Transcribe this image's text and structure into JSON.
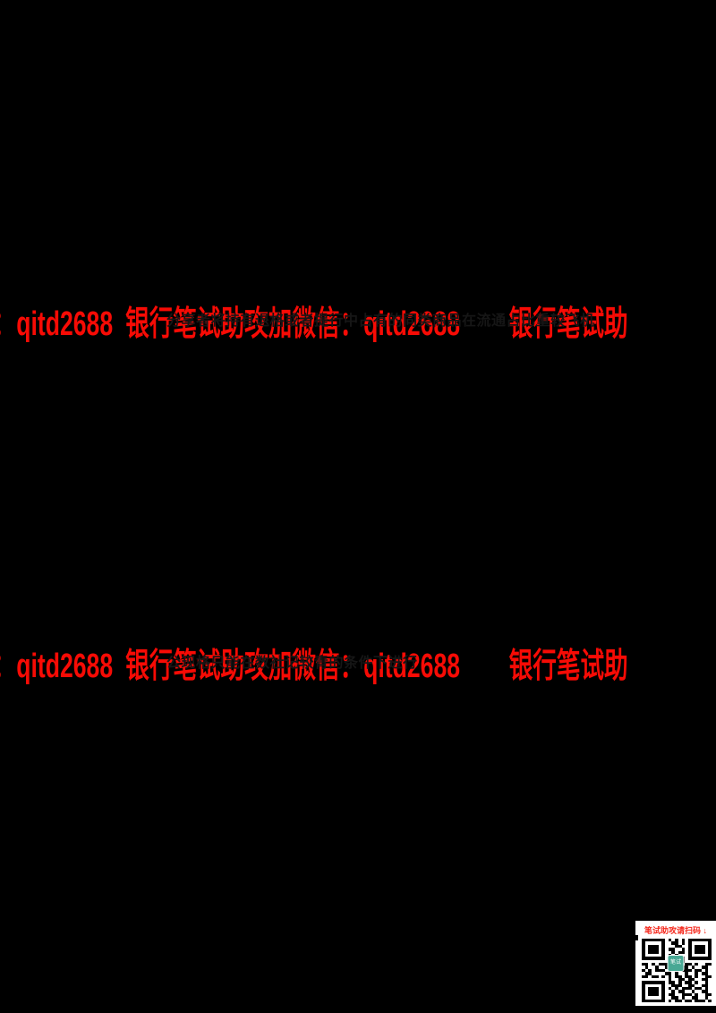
{
  "page": {
    "background_color": "#000000"
  },
  "watermark": {
    "color": "#f70b05",
    "full_text": "银行笔试助攻加微信：qitd2688",
    "tail_text": "：qitd2688",
    "right_text": "银行笔试助"
  },
  "document_fragments": {
    "band1_text": "分享者将持有退格或者提行中占有的同类商品在流通占比重较飞机",
    "band2_text": "公现格只能在数社记较青的条件下进行"
  },
  "qr_panel": {
    "caption": "笔试助攻请扫码 ↓",
    "caption_color": "#f5281c",
    "logo_color": "#48a894",
    "logo_text": "笔试",
    "matrix": [
      "111111101010101111111",
      "100000100110101000001",
      "101110100011001011101",
      "101110101100101011101",
      "101110100101101011101",
      "100000101010001000001",
      "111111101010101111111",
      "000000000110100000000",
      "110101111001011010011",
      "010010010110110100110",
      "101011101100111011010",
      "011000011010010010110",
      "110110101011011010011",
      "000000001001101100110",
      "111111101101011010010",
      "100000100111001100110",
      "101110101010111011010",
      "101110100101100100110",
      "101110101100111010011",
      "100000100110100110010",
      "111111101011011011101"
    ]
  }
}
